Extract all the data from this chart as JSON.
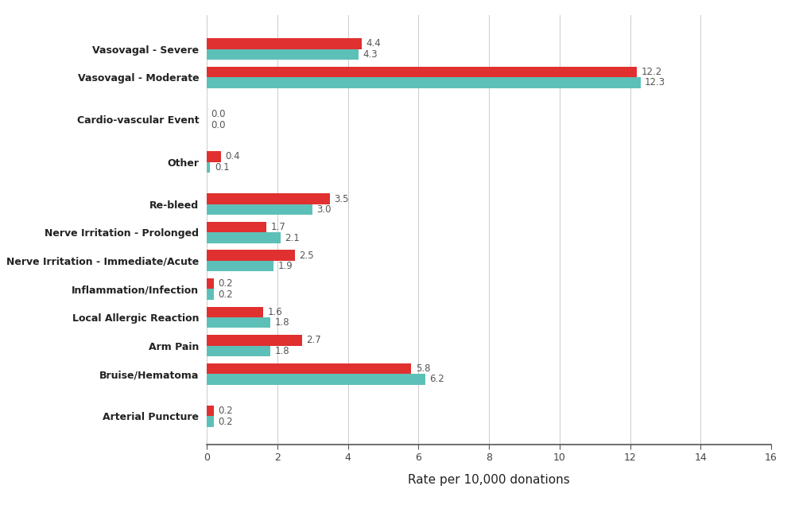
{
  "categories": [
    "Vasovagal - Severe",
    "Vasovagal - Moderate",
    "Cardio-vascular Event",
    "Other",
    "Re-bleed",
    "Nerve Irritation - Prolonged",
    "Nerve Irritation - Immediate/Acute",
    "Inflammation/Infection",
    "Local Allergic Reaction",
    "Arm Pain",
    "Bruise/Hematoma",
    "Arterial Puncture"
  ],
  "red_values": [
    4.4,
    12.2,
    0.0,
    0.4,
    3.5,
    1.7,
    2.5,
    0.2,
    1.6,
    2.7,
    5.8,
    0.2
  ],
  "teal_values": [
    4.3,
    12.3,
    0.0,
    0.1,
    3.0,
    2.1,
    1.9,
    0.2,
    1.8,
    1.8,
    6.2,
    0.2
  ],
  "y_positions": [
    14.0,
    13.0,
    11.5,
    10.0,
    8.5,
    7.5,
    6.5,
    5.5,
    4.5,
    3.5,
    2.5,
    1.0
  ],
  "red_color": "#e03030",
  "teal_color": "#5dc0b8",
  "xlabel": "Rate per 10,000 donations",
  "xlim": [
    0,
    16.0
  ],
  "xticks": [
    0,
    2.0,
    4.0,
    6.0,
    8.0,
    10.0,
    12.0,
    14.0,
    16.0
  ],
  "bar_height": 0.38,
  "figsize": [
    10.0,
    6.35
  ],
  "dpi": 100,
  "background_color": "#ffffff",
  "spine_color": "#555555",
  "label_fontsize": 9,
  "value_fontsize": 8.5,
  "xlabel_fontsize": 11
}
